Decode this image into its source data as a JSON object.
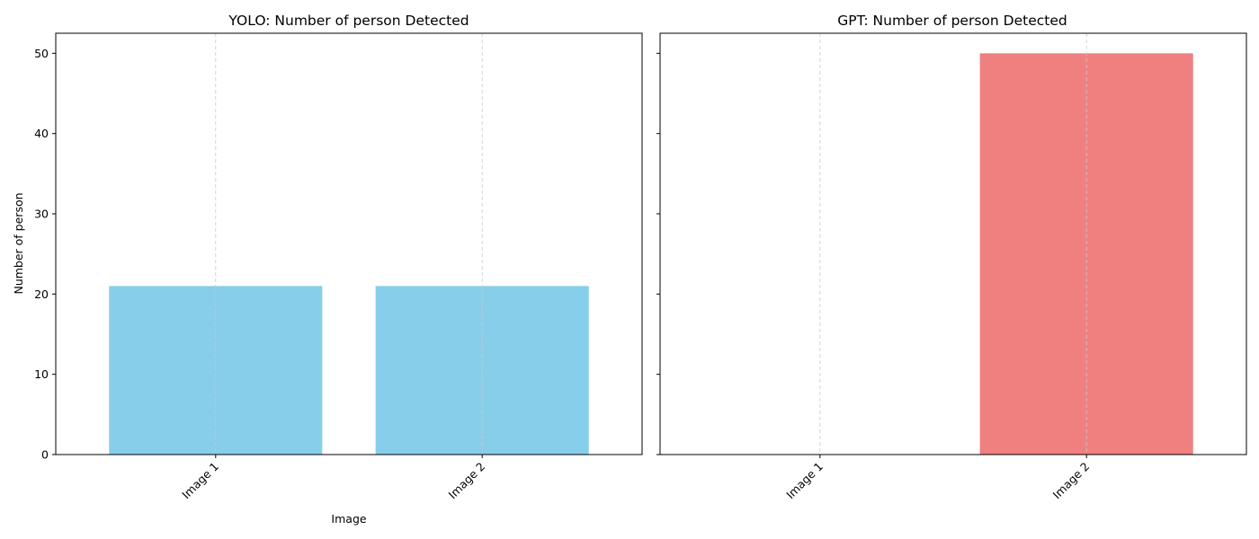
{
  "figure": {
    "subplots": [
      {
        "title": "YOLO: Number of person Detected",
        "xlabel": "Image",
        "ylabel": "Number of person"
      },
      {
        "title": "GPT: Number of person Detected",
        "xlabel": "",
        "ylabel": ""
      }
    ]
  },
  "chart_data": [
    {
      "type": "bar",
      "title": "YOLO: Number of person Detected",
      "xlabel": "Image",
      "ylabel": "Number of person",
      "categories": [
        "Image 1",
        "Image 2"
      ],
      "values": [
        21,
        21
      ],
      "ylim": [
        0,
        52.5
      ],
      "yticks": [
        0,
        10,
        20,
        30,
        40,
        50
      ],
      "color": "#87ceeb",
      "grid": "x-dashed"
    },
    {
      "type": "bar",
      "title": "GPT: Number of person Detected",
      "xlabel": "",
      "ylabel": "",
      "categories": [
        "Image 1",
        "Image 2"
      ],
      "values": [
        0,
        50
      ],
      "ylim": [
        0,
        52.5
      ],
      "yticks": [
        0,
        10,
        20,
        30,
        40,
        50
      ],
      "color": "#f08080",
      "grid": "x-dashed"
    }
  ]
}
